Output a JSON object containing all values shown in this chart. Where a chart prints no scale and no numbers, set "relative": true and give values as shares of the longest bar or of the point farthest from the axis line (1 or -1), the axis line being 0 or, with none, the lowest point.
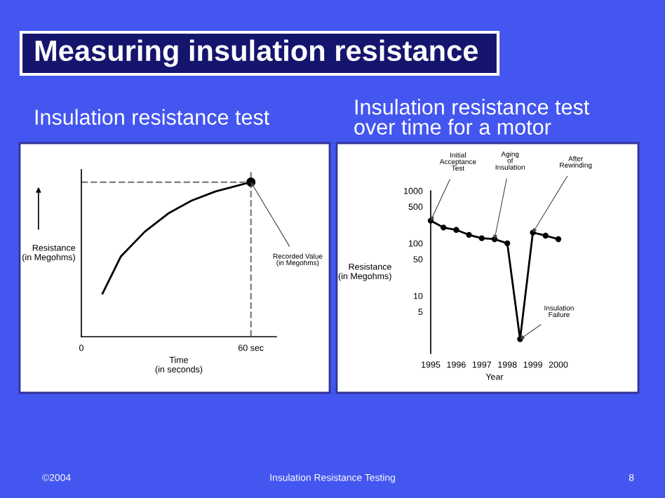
{
  "chart_data": [
    {
      "type": "other",
      "title": "Measuring insulation resistance",
      "annotations": [
        "©2004",
        "Insulation Resistance Testing",
        "8"
      ]
    },
    {
      "type": "line",
      "title": "Insulation resistance test",
      "xlabel": "Time\n(in seconds)",
      "ylabel": "Resistance\n(in Megohms)",
      "relative": true,
      "xlim": [
        0,
        69
      ],
      "xticks": [
        0,
        {
          "value": 60,
          "label": "60 sec"
        }
      ],
      "tick_labels": "x",
      "grid": false,
      "legend": false,
      "series": [
        {
          "type": "line",
          "color": "#000000",
          "x": [
            7.5,
            14,
            22.5,
            31,
            39,
            47.5,
            60
          ],
          "values": [
            0.28,
            0.52,
            0.68,
            0.8,
            0.88,
            0.94,
            1
          ]
        },
        {
          "type": "line",
          "color": "#888888",
          "line_style": "dashed",
          "x": [
            0,
            60
          ],
          "values": [
            1,
            1
          ]
        },
        {
          "type": "scatter",
          "color": "#000000",
          "x": [
            60
          ],
          "values": [
            1
          ]
        }
      ],
      "ref_lines": [
        {
          "axis": "x",
          "value": 60,
          "line_style": "dashed",
          "color": "#888888"
        }
      ],
      "annotations": [
        {
          "text": "Recorded Value\n(in Megohms)",
          "x": 60,
          "y": 1
        }
      ]
    },
    {
      "type": "line",
      "title": "Insulation resistance test\nover time for a motor",
      "xlabel": "Year",
      "ylabel": "Resistance\n(in Megohms)",
      "log": "y",
      "ylim": [
        0.8,
        1000
      ],
      "yticks": [
        5,
        10,
        50,
        100,
        500,
        1000
      ],
      "xlim": [
        1995,
        2000
      ],
      "xticks": [
        1995,
        1996,
        1997,
        1998,
        1999,
        2000
      ],
      "grid": false,
      "legend": false,
      "marker": "circle",
      "series": [
        {
          "color": "#000000",
          "x": [
            1995,
            1995.5,
            1996,
            1996.5,
            1997,
            1997.5,
            1998,
            1998.5,
            1999,
            1999.5,
            2000
          ],
          "values": [
            270,
            200,
            180,
            145,
            125,
            120,
            100,
            1.5,
            160,
            140,
            120
          ]
        }
      ],
      "annotations": [
        {
          "text": "Initial\nAcceptance\nTest",
          "x": 1995,
          "y": 270
        },
        {
          "text": "Aging\nof\nInsulation",
          "x": 1997.5,
          "y": 120
        },
        {
          "text": "After\nRewinding",
          "x": 1999,
          "y": 160
        },
        {
          "text": "Insulation\nFailure",
          "x": 1998.5,
          "y": 1.5
        }
      ]
    }
  ]
}
